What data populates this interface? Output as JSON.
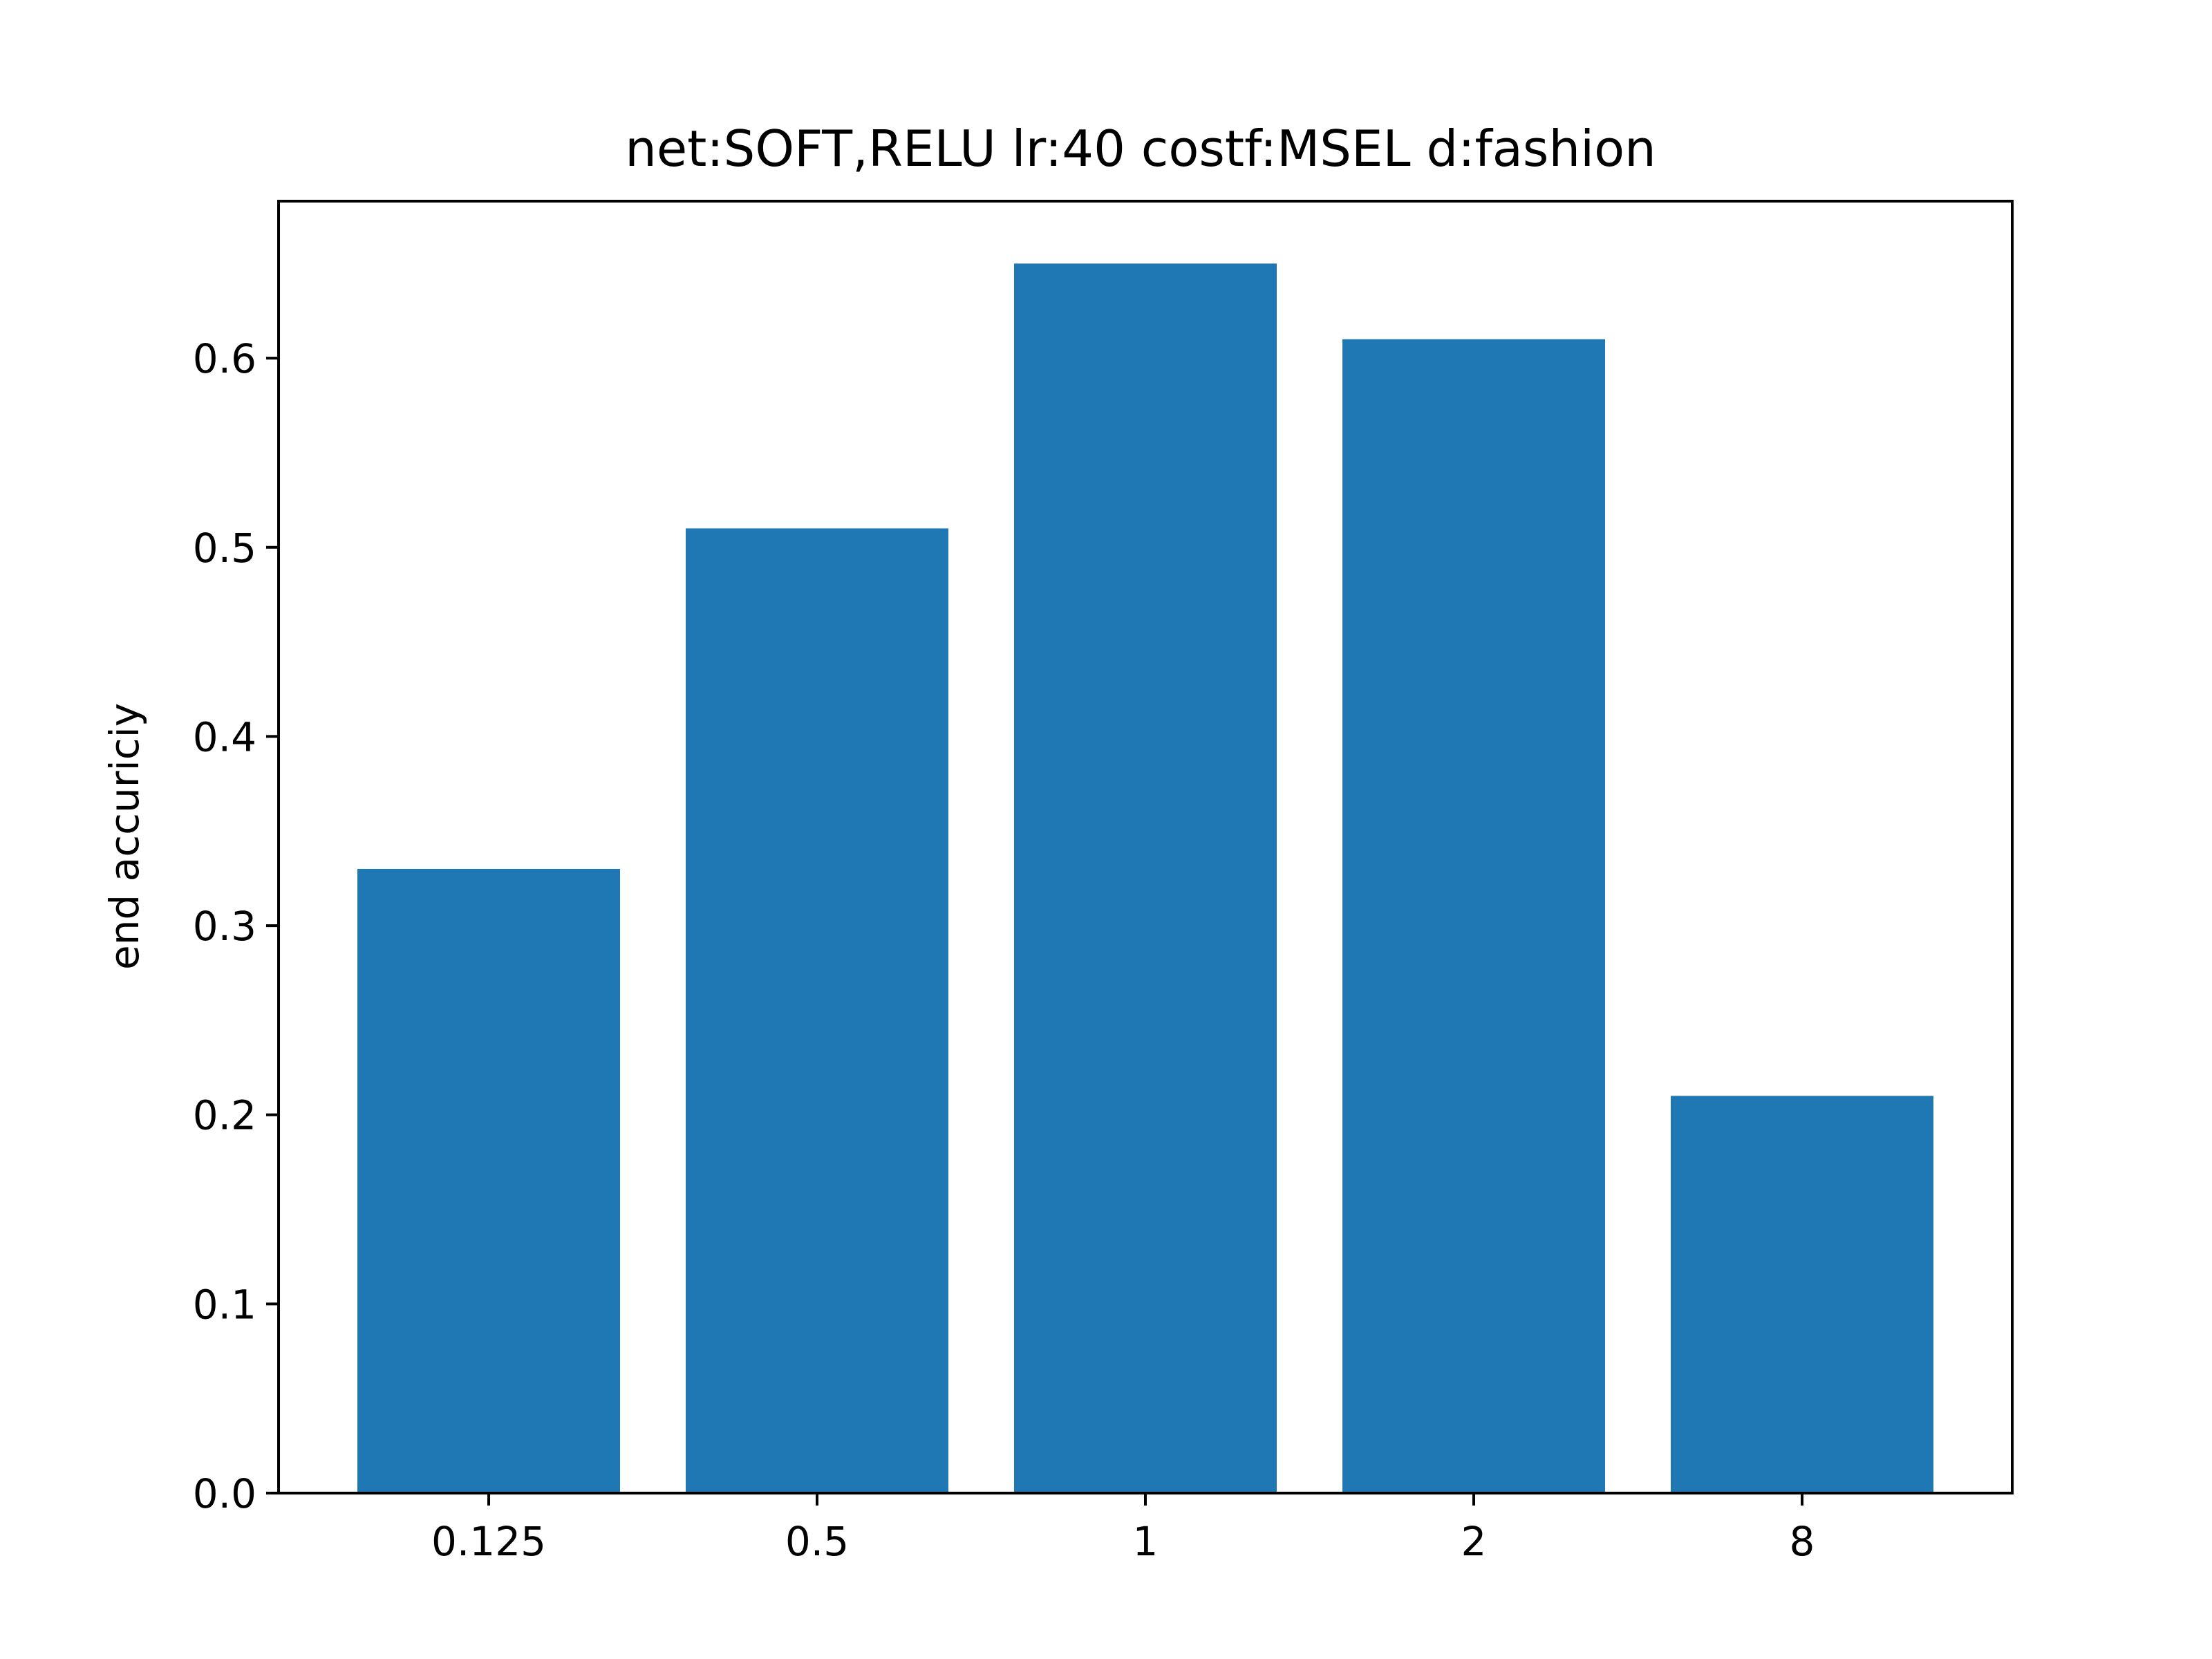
{
  "chart_data": {
    "type": "bar",
    "title": "net:SOFT,RELU lr:40 costf:MSEL d:fashion",
    "xlabel": "",
    "ylabel": "end accuriciy",
    "categories": [
      "0.125",
      "0.5",
      "1",
      "2",
      "8"
    ],
    "values": [
      0.33,
      0.51,
      0.65,
      0.61,
      0.21
    ],
    "ylim": [
      0,
      0.683
    ],
    "yticks": [
      0.0,
      0.1,
      0.2,
      0.3,
      0.4,
      0.5,
      0.6
    ],
    "ytick_labels": [
      "0.0",
      "0.1",
      "0.2",
      "0.3",
      "0.4",
      "0.5",
      "0.6"
    ],
    "bar_color": "#1f77b4",
    "grid": false,
    "legend": "none"
  }
}
